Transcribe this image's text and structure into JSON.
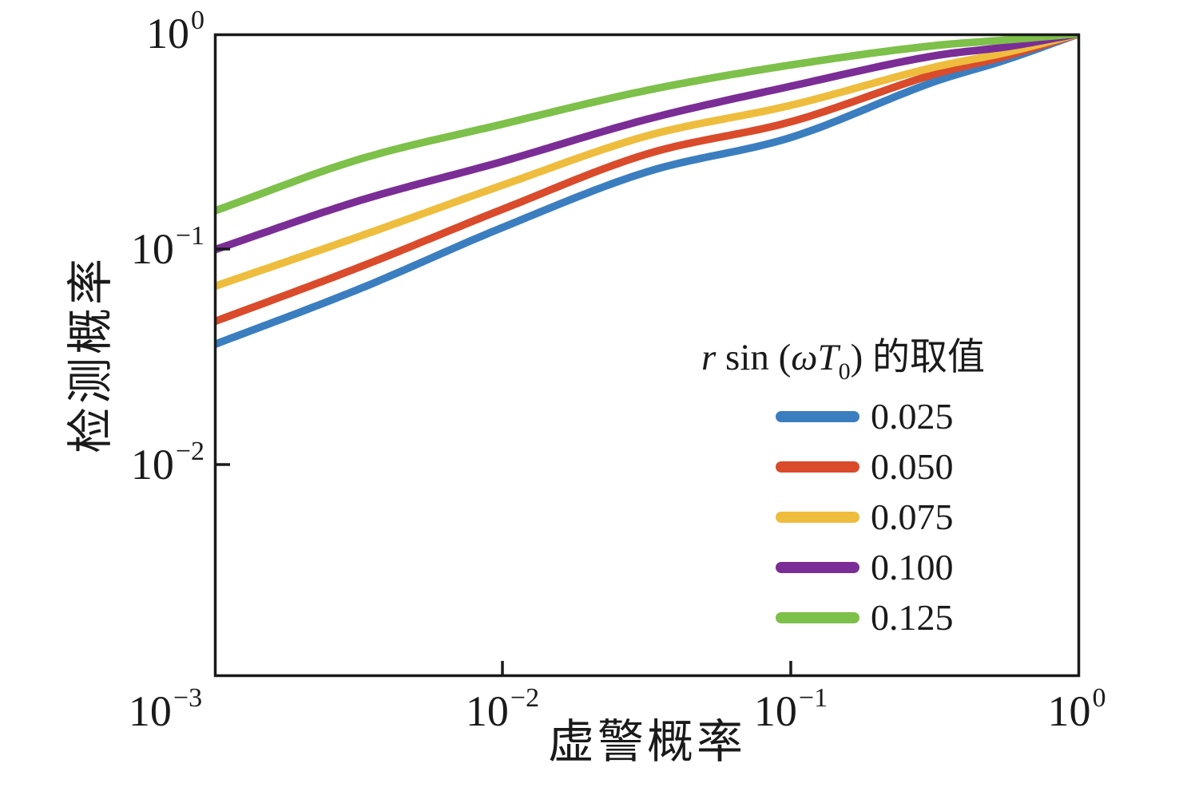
{
  "chart_data": {
    "type": "line",
    "title": "",
    "xlabel": "虚警概率",
    "ylabel": "检测概率",
    "xscale": "log",
    "yscale": "log",
    "xlim": [
      0.001,
      1.0
    ],
    "ylim": [
      0.001,
      1.0
    ],
    "grid": false,
    "legend_title": "r sin (ωT₀) 的取值",
    "legend_position": "inside lower right",
    "x": [
      0.001,
      0.00316,
      0.01,
      0.0316,
      0.1,
      0.316,
      0.562,
      1.0
    ],
    "series": [
      {
        "name": "0.025",
        "color": "#3b7ec0",
        "y": [
          0.036,
          0.065,
          0.126,
          0.228,
          0.33,
          0.6,
          0.76,
          1.0
        ]
      },
      {
        "name": "0.050",
        "color": "#d94b2b",
        "y": [
          0.046,
          0.082,
          0.153,
          0.276,
          0.39,
          0.65,
          0.79,
          1.0
        ]
      },
      {
        "name": "0.075",
        "color": "#eebd3d",
        "y": [
          0.067,
          0.114,
          0.198,
          0.335,
          0.465,
          0.7,
          0.82,
          1.0
        ]
      },
      {
        "name": "0.100",
        "color": "#7b2d96",
        "y": [
          0.099,
          0.167,
          0.255,
          0.4,
          0.57,
          0.79,
          0.87,
          1.0
        ]
      },
      {
        "name": "0.125",
        "color": "#7dc04a",
        "y": [
          0.15,
          0.26,
          0.38,
          0.545,
          0.715,
          0.88,
          0.935,
          1.0
        ]
      }
    ]
  },
  "axes": {
    "x": {
      "label": "虚警概率",
      "ticks": [
        {
          "base": "10",
          "exp": "−3"
        },
        {
          "base": "10",
          "exp": "−2"
        },
        {
          "base": "10",
          "exp": "−1"
        },
        {
          "base": "10",
          "exp": "0"
        }
      ]
    },
    "y": {
      "label": "检测概率",
      "ticks": [
        {
          "base": "10",
          "exp": "0"
        },
        {
          "base": "10",
          "exp": "−1"
        },
        {
          "base": "10",
          "exp": "−2"
        }
      ]
    }
  },
  "legend": {
    "title_parts": {
      "r": "r",
      "sin": " sin (",
      "omega": "ω",
      "T": "T",
      "sub": "0",
      "close": ") ",
      "suffix": "的取值"
    }
  },
  "style": {
    "axis_color": "#1a1a1a",
    "background": "#ffffff"
  }
}
